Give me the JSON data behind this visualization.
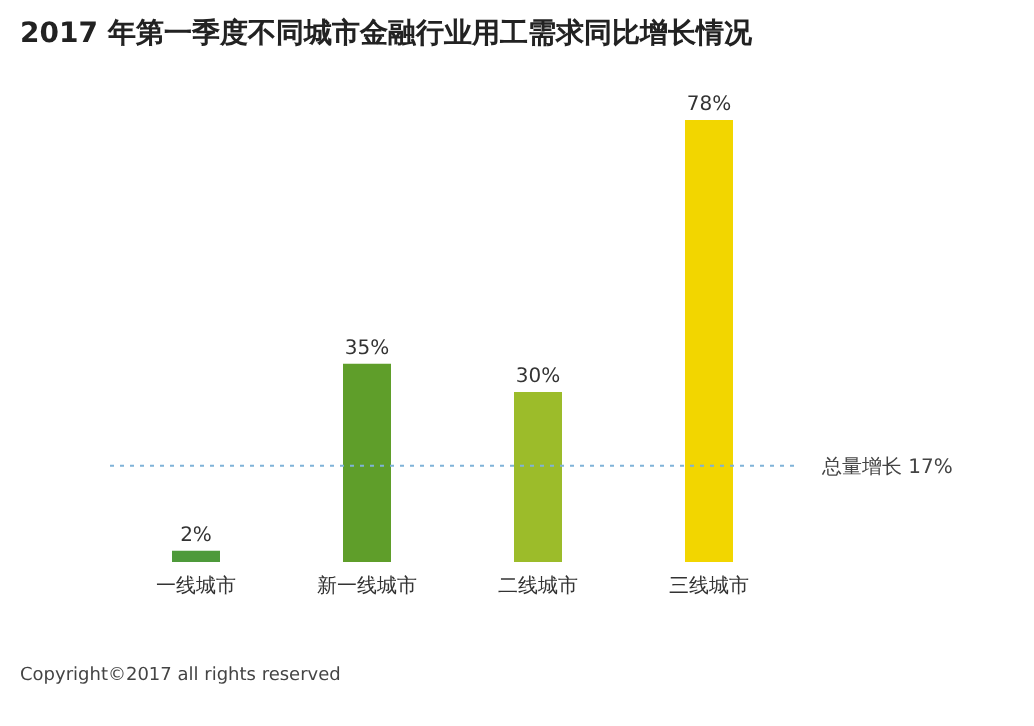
{
  "chart_data": {
    "type": "bar",
    "title": "2017 年第一季度不同城市金融行业用工需求同比增长情况",
    "categories": [
      "一线城市",
      "新一线城市",
      "二线城市",
      "三线城市"
    ],
    "values": [
      2,
      35,
      30,
      78
    ],
    "colors": [
      "#4e9a3a",
      "#5f9e2a",
      "#9cbc2a",
      "#f2d600"
    ],
    "value_labels": [
      "2%",
      "35%",
      "30%",
      "78%"
    ],
    "ref_lines": [
      {
        "axis": "y",
        "value": 17,
        "label": "总量增长  17%",
        "color": "#7fb2d8",
        "line_style": "dotted"
      }
    ],
    "annotations": [
      "Copyright©2017 all rights reserved"
    ]
  }
}
